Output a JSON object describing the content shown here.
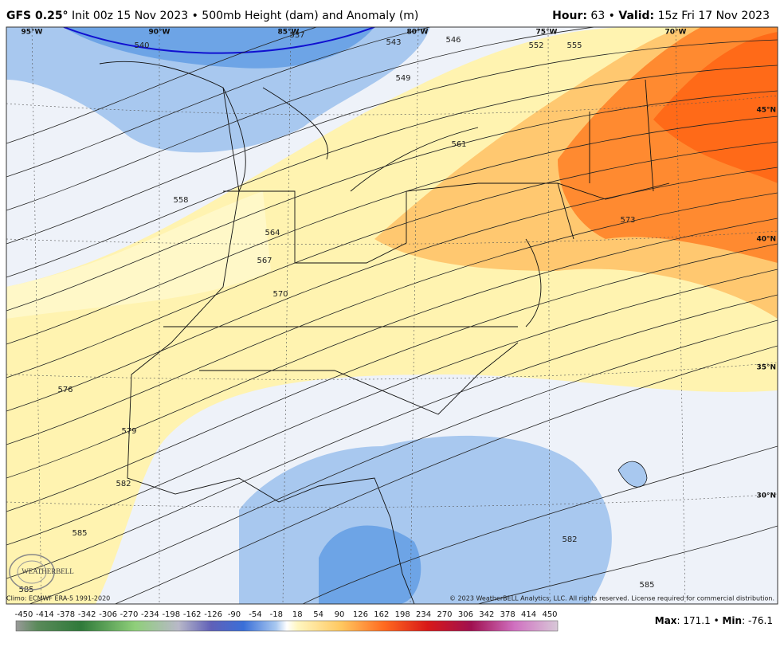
{
  "header": {
    "model": "GFS 0.25°",
    "init": "Init 00z 15 Nov 2023 • 500mb Height (dam) and Anomaly (m)",
    "hour_label": "Hour:",
    "hour": "63 •",
    "valid_label": "Valid:",
    "valid": "15z Fri 17 Nov 2023"
  },
  "map": {
    "longitudes": [
      "95°W",
      "90°W",
      "85°W",
      "80°W",
      "75°W",
      "70°W"
    ],
    "latitudes": [
      "45°N",
      "40°N",
      "35°N",
      "30°N"
    ],
    "contour_labels": [
      "540",
      "537",
      "543",
      "546",
      "549",
      "552",
      "555",
      "558",
      "561",
      "564",
      "567",
      "570",
      "573",
      "576",
      "579",
      "582",
      "585",
      "582",
      "585",
      "585"
    ],
    "logo": "WEATHERBELL"
  },
  "footer": {
    "climo": "Climo: ECMWF ERA-5 1991-2020",
    "copyright": "© 2023 WeatherBELL Analytics, LLC. All rights reserved. License required for commercial distribution.",
    "max_label": "Max",
    "max": ": 171.1 •",
    "min_label": "Min",
    "min": ": -76.1"
  },
  "colorbar": {
    "labels": [
      "-450",
      "-414",
      "-378",
      "-342",
      "-306",
      "-270",
      "-234",
      "-198",
      "-162",
      "-126",
      "-90",
      "-54",
      "-18",
      "18",
      "54",
      "90",
      "126",
      "162",
      "198",
      "234",
      "270",
      "306",
      "342",
      "378",
      "414",
      "450"
    ]
  }
}
